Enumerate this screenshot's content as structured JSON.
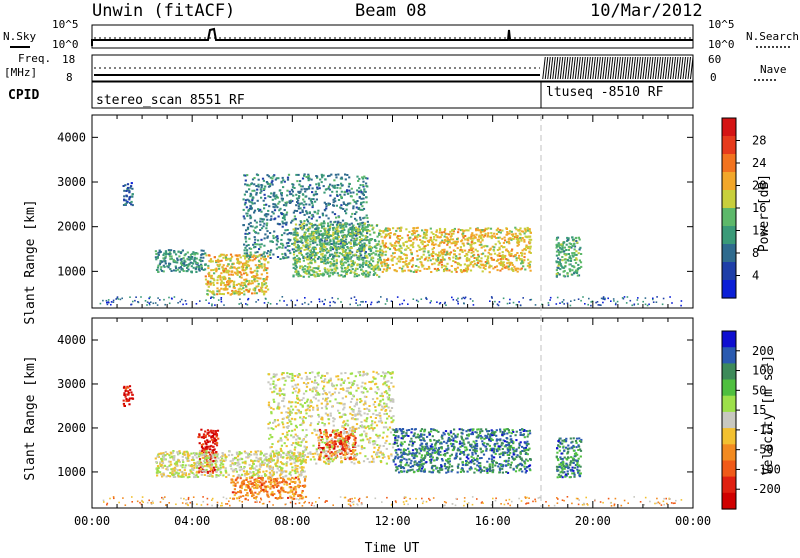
{
  "header": {
    "site": "Unwin (fitACF)",
    "beam": "Beam 08",
    "date": "10/Mar/2012"
  },
  "status_panels": {
    "nsky_label": "N.Sky",
    "nsearch_label": "N.Search",
    "freq_label": "Freq.",
    "freq_unit": "[MHz]",
    "nave_label": "Nave",
    "cpid_label": "CPID",
    "noise_axis_left": [
      "10^5",
      "10^0"
    ],
    "noise_axis_right": [
      "10^5",
      "10^0"
    ],
    "freq_axis_left": [
      "18",
      "8"
    ],
    "nave_axis_right": [
      "60",
      "0"
    ],
    "cpid_segments": [
      {
        "label": "stereo_scan 8551 RF",
        "start_hour": 0,
        "end_hour": 18
      },
      {
        "label": "ltuseq -8510 RF",
        "start_hour": 18,
        "end_hour": 24
      }
    ]
  },
  "chart_data": [
    {
      "type": "heatmap",
      "name": "power-panel",
      "ylabel": "Slant Range [km]",
      "xlabel": "",
      "xlim_hours": [
        0,
        24
      ],
      "ylim": [
        180,
        4500
      ],
      "yticks": [
        1000,
        2000,
        3000,
        4000
      ],
      "colorbar": {
        "label": "Power [dB]",
        "ticks": [
          "28",
          "24",
          "20",
          "16",
          "12",
          "8",
          "4"
        ],
        "range": [
          0,
          30
        ],
        "colors": [
          "#0b1fd6",
          "#1f3fa8",
          "#2f6b8e",
          "#3a9a78",
          "#5db86a",
          "#c8cf3c",
          "#f2a72a",
          "#f2731f",
          "#e63a1c",
          "#d41414"
        ]
      },
      "regions": [
        {
          "hour_start": 1.2,
          "hour_end": 1.6,
          "range_start": 2500,
          "range_end": 3000,
          "level": 6
        },
        {
          "hour_start": 2.5,
          "hour_end": 4.5,
          "range_start": 1000,
          "range_end": 1500,
          "level": 10
        },
        {
          "hour_start": 4.5,
          "hour_end": 7.0,
          "range_start": 500,
          "range_end": 1400,
          "level": 18
        },
        {
          "hour_start": 6.0,
          "hour_end": 11.0,
          "range_start": 1300,
          "range_end": 3200,
          "level": 9
        },
        {
          "hour_start": 8.0,
          "hour_end": 11.5,
          "range_start": 900,
          "range_end": 2100,
          "level": 14
        },
        {
          "hour_start": 11.5,
          "hour_end": 17.5,
          "range_start": 1000,
          "range_end": 2000,
          "level": 18
        },
        {
          "hour_start": 18.5,
          "hour_end": 19.5,
          "range_start": 900,
          "range_end": 1800,
          "level": 12
        }
      ]
    },
    {
      "type": "heatmap",
      "name": "velocity-panel",
      "ylabel": "Slant Range [km]",
      "xlabel": "Time UT",
      "xlim_hours": [
        0,
        24
      ],
      "ylim": [
        180,
        4500
      ],
      "yticks": [
        1000,
        2000,
        3000,
        4000
      ],
      "xticks": [
        "00:00",
        "04:00",
        "08:00",
        "12:00",
        "16:00",
        "20:00",
        "00:00"
      ],
      "colorbar": {
        "label": "Velocity [m s^-1]",
        "ticks": [
          "200",
          "100",
          "50",
          "15",
          "-15",
          "-50",
          "-100",
          "-200"
        ],
        "range": [
          -250,
          250
        ],
        "colors": [
          "#0f0fd0",
          "#2a5ab0",
          "#3d8a5a",
          "#4fbf3f",
          "#9de04a",
          "#c8c8c0",
          "#f2c030",
          "#f28a20",
          "#f05a18",
          "#e02010",
          "#d00000"
        ]
      },
      "regions": [
        {
          "hour_start": 1.2,
          "hour_end": 1.6,
          "range_start": 2500,
          "range_end": 3000,
          "velocity": -200
        },
        {
          "hour_start": 4.2,
          "hour_end": 5.0,
          "range_start": 1000,
          "range_end": 2000,
          "velocity": -200
        },
        {
          "hour_start": 2.5,
          "hour_end": 8.5,
          "range_start": 900,
          "range_end": 1500,
          "velocity": 0
        },
        {
          "hour_start": 5.5,
          "hour_end": 8.5,
          "range_start": 400,
          "range_end": 900,
          "velocity": -100
        },
        {
          "hour_start": 9.0,
          "hour_end": 10.5,
          "range_start": 1300,
          "range_end": 2000,
          "velocity": -150
        },
        {
          "hour_start": 7.0,
          "hour_end": 12.0,
          "range_start": 1200,
          "range_end": 3300,
          "velocity": 0
        },
        {
          "hour_start": 12.0,
          "hour_end": 17.5,
          "range_start": 1000,
          "range_end": 2000,
          "velocity": 150
        },
        {
          "hour_start": 18.5,
          "hour_end": 19.5,
          "range_start": 900,
          "range_end": 1800,
          "velocity": 150
        }
      ]
    }
  ]
}
